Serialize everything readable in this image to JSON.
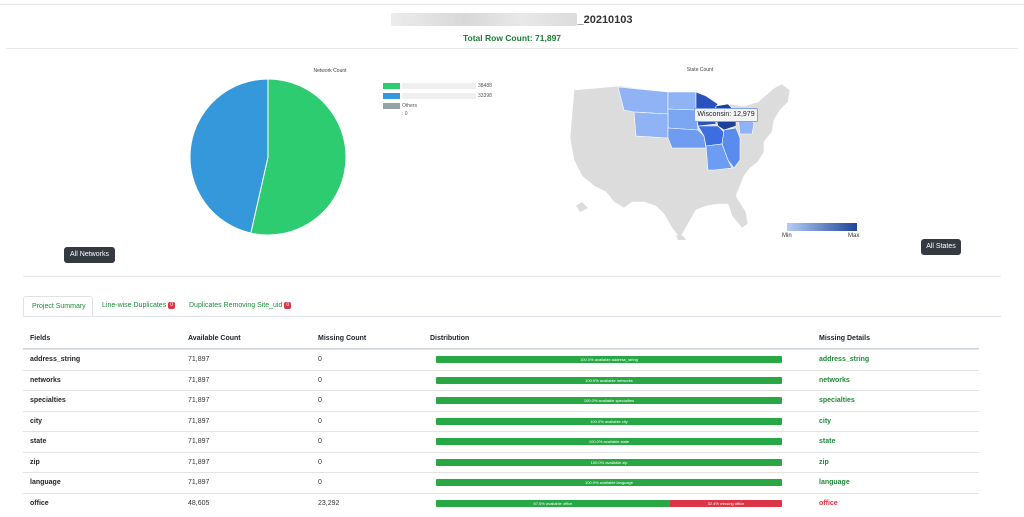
{
  "header": {
    "title": "_20210103",
    "row_count": "Total Row Count: 71,897"
  },
  "network_chart": {
    "title": "Network Count",
    "legend": [
      {
        "value": "38488",
        "color": "#2ecc71"
      },
      {
        "value": "33398",
        "color": "#3498db"
      },
      {
        "label": "Others : 0",
        "color": "#95a5a6"
      }
    ],
    "button": "All Networks"
  },
  "chart_data": {
    "type": "pie",
    "title": "Network Count",
    "slices": [
      {
        "value": 38488,
        "color": "#2ecc71"
      },
      {
        "value": 33398,
        "color": "#3498db"
      },
      {
        "value": 0,
        "color": "#95a5a6"
      }
    ]
  },
  "state_chart": {
    "title": "State Count",
    "tooltip": "Wisconsin: 12,979",
    "legend_min": "Min",
    "legend_max": "Max",
    "button": "All States"
  },
  "tabs": [
    {
      "label": "Project Summary",
      "active": true
    },
    {
      "label": "Line-wise Duplicates",
      "badge": "0"
    },
    {
      "label": "Duplicates Removing Site_uid",
      "badge": "0"
    }
  ],
  "table": {
    "headers": [
      "Fields",
      "Available Count",
      "Missing Count",
      "Distribution",
      "Missing Details"
    ],
    "rows": [
      {
        "field": "address_string",
        "available": "71,897",
        "missing": "0",
        "avail_pct": 100,
        "avail_label": "100.0% available address_string",
        "missing_label": "",
        "details": "address_string",
        "bad": false
      },
      {
        "field": "networks",
        "available": "71,897",
        "missing": "0",
        "avail_pct": 100,
        "avail_label": "100.0% available networks",
        "missing_label": "",
        "details": "networks",
        "bad": false
      },
      {
        "field": "specialties",
        "available": "71,897",
        "missing": "0",
        "avail_pct": 100,
        "avail_label": "100.0% available specialties",
        "missing_label": "",
        "details": "specialties",
        "bad": false
      },
      {
        "field": "city",
        "available": "71,897",
        "missing": "0",
        "avail_pct": 100,
        "avail_label": "100.0% available city",
        "missing_label": "",
        "details": "city",
        "bad": false
      },
      {
        "field": "state",
        "available": "71,897",
        "missing": "0",
        "avail_pct": 100,
        "avail_label": "100.0% available state",
        "missing_label": "",
        "details": "state",
        "bad": false
      },
      {
        "field": "zip",
        "available": "71,897",
        "missing": "0",
        "avail_pct": 100,
        "avail_label": "100.0% available zip",
        "missing_label": "",
        "details": "zip",
        "bad": false
      },
      {
        "field": "language",
        "available": "71,897",
        "missing": "0",
        "avail_pct": 100,
        "avail_label": "100.0% available language",
        "missing_label": "",
        "details": "language",
        "bad": false
      },
      {
        "field": "office",
        "available": "48,605",
        "missing": "23,292",
        "avail_pct": 67.6,
        "avail_label": "67.6% available office",
        "missing_label": "32.4% missing office",
        "details": "office",
        "bad": true
      }
    ]
  },
  "colors": {
    "accent_green": "#1e8a3a",
    "bar_ok": "#28a745",
    "bar_bad": "#dc3545",
    "map_dark": "#2a52be",
    "map_light": "#8fb3f5",
    "map_gray": "#dcdcdc"
  }
}
